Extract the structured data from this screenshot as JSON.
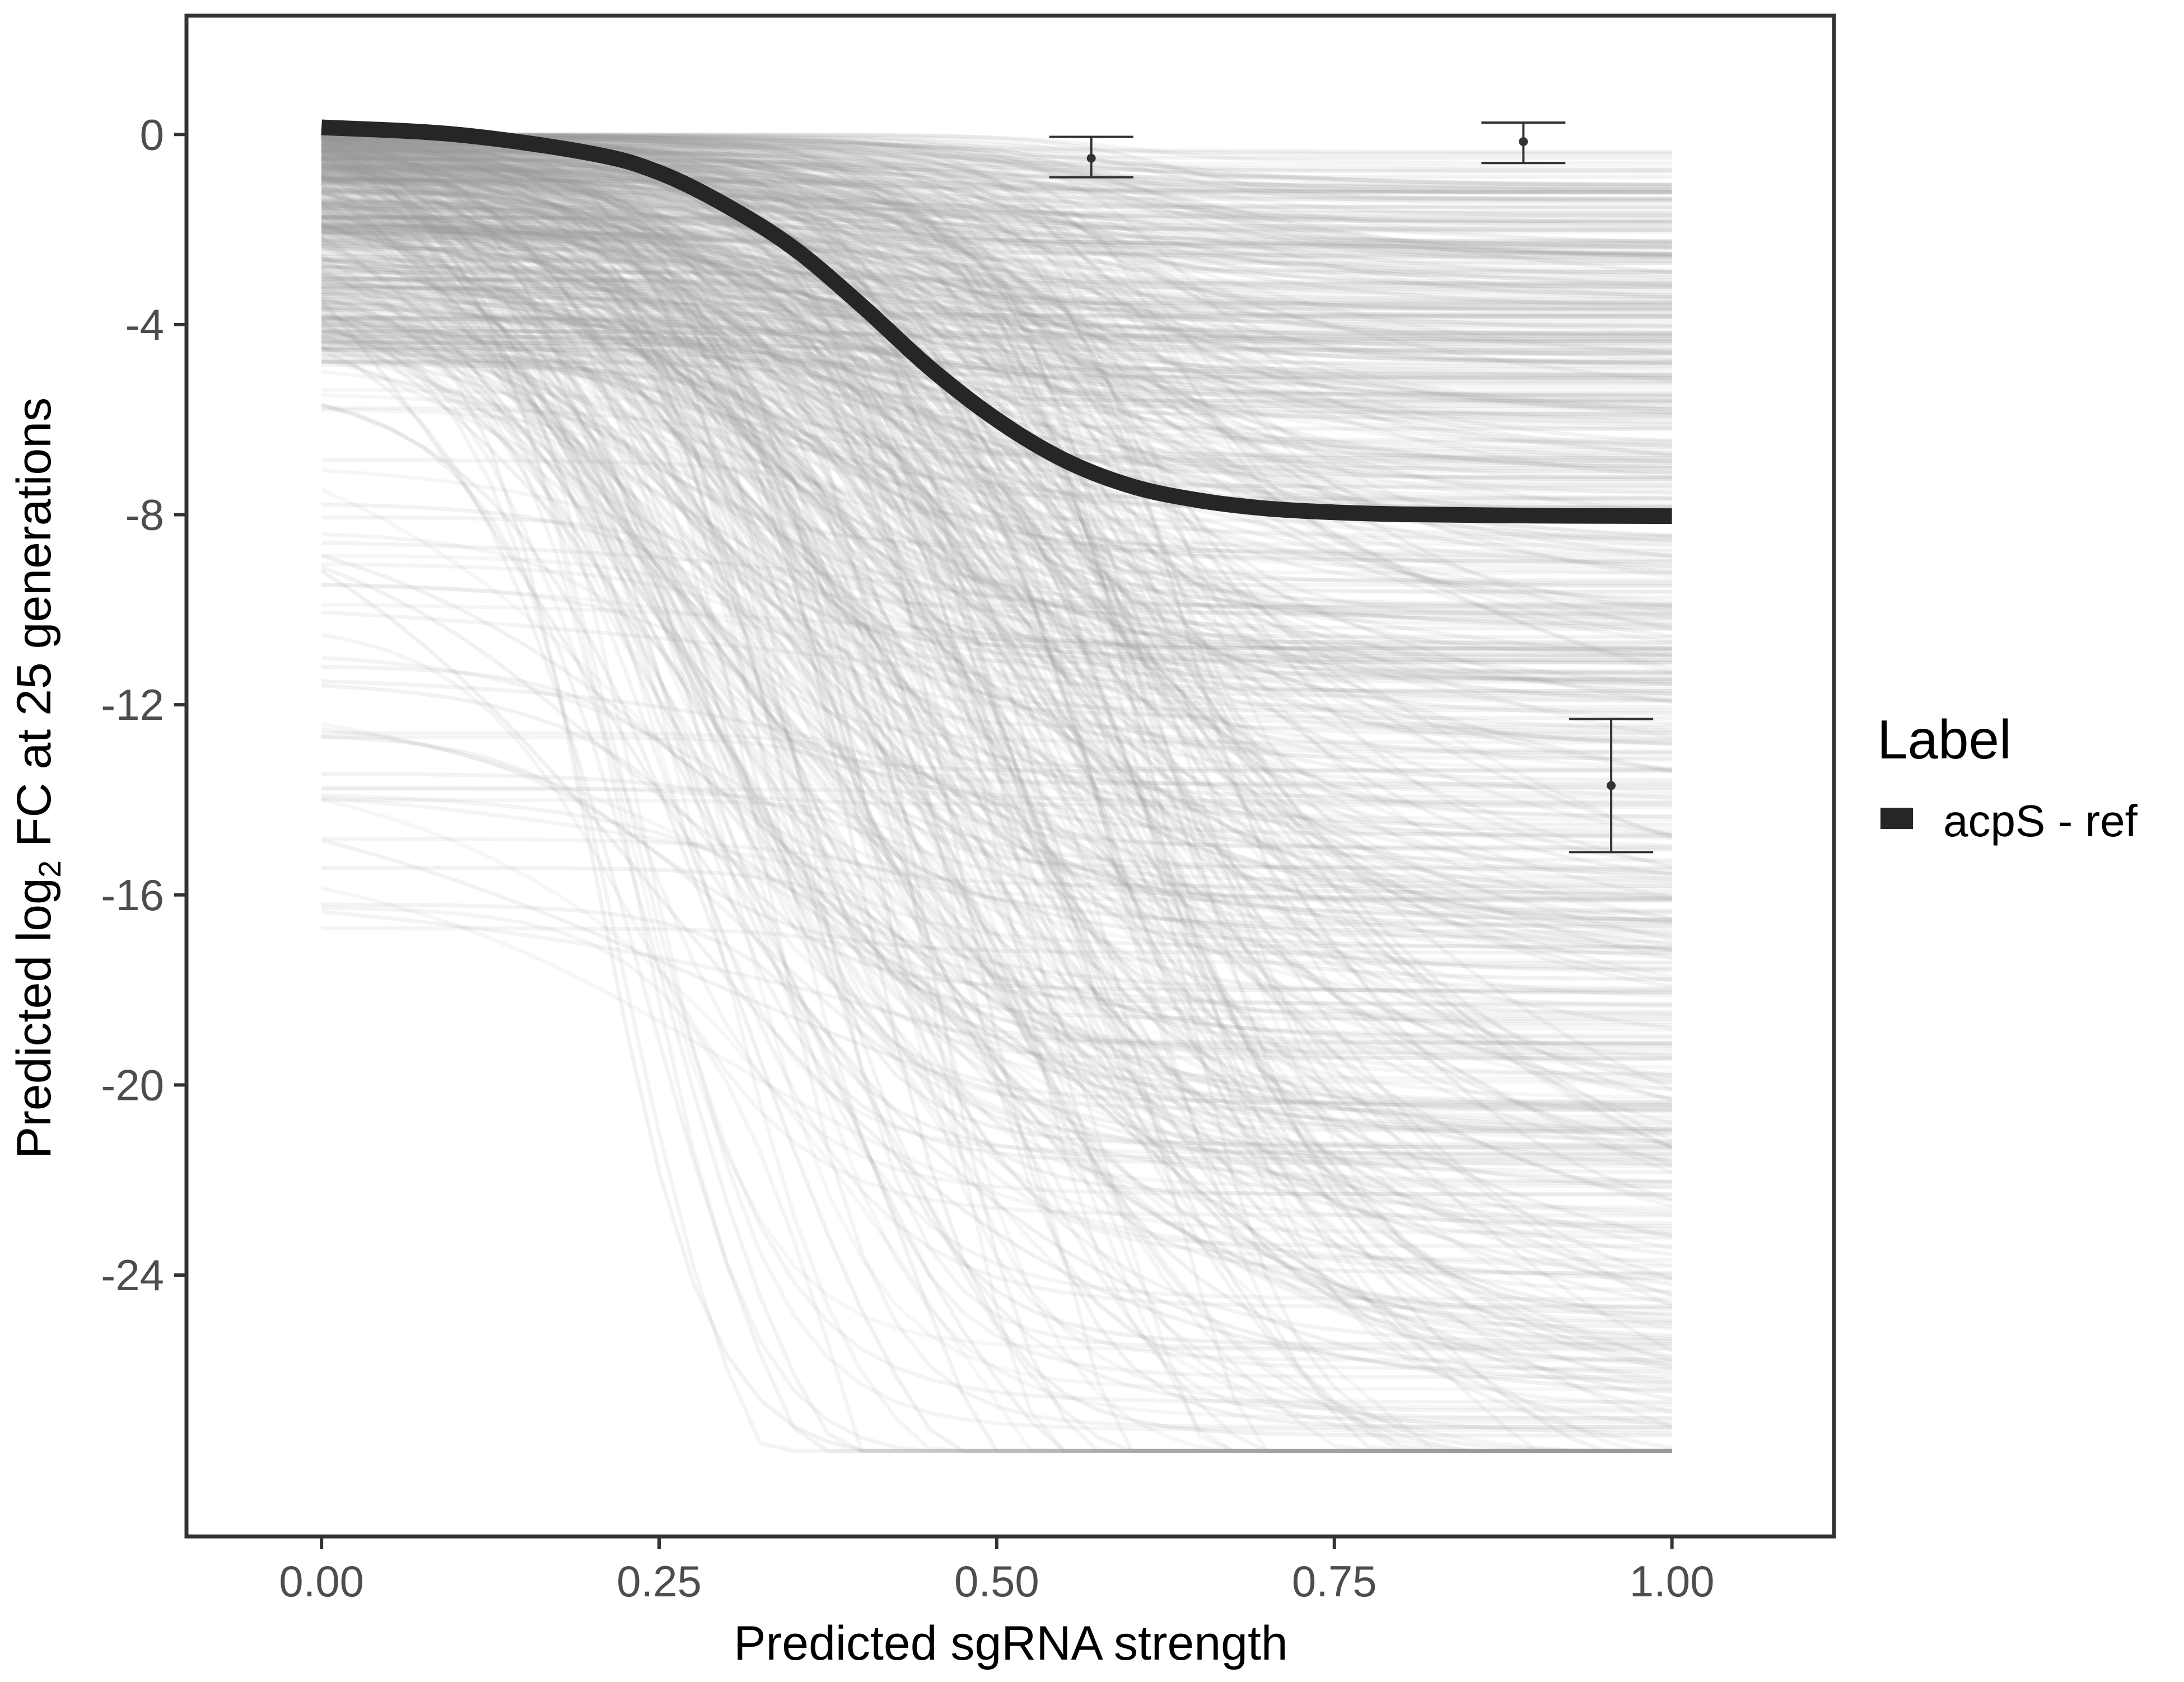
{
  "chart_data": {
    "type": "line",
    "xlabel": "Predicted sgRNA strength",
    "ylabel_prefix": "Predicted  log",
    "ylabel_subscript": "2",
    "ylabel_suffix": " FC at 25 generations",
    "xlim": [
      -0.1,
      1.12
    ],
    "ylim": [
      -29.5,
      2.5
    ],
    "x_ticks": [
      0.0,
      0.25,
      0.5,
      0.75,
      1.0
    ],
    "x_tick_labels": [
      "0.00",
      "0.25",
      "0.50",
      "0.75",
      "1.00"
    ],
    "y_ticks": [
      0,
      -4,
      -8,
      -12,
      -16,
      -20,
      -24
    ],
    "y_tick_labels": [
      "0",
      "-4",
      "-8",
      "-12",
      "-16",
      "-20",
      "-24"
    ],
    "grid": false,
    "legend": {
      "title": "Label",
      "position": "right",
      "entries": [
        {
          "label": "acpS - ref",
          "color": "#262626"
        }
      ]
    },
    "colors": {
      "highlight": "#262626",
      "posterior": "#9a9a9a",
      "errorbar": "#333333",
      "frame": "#333333"
    },
    "highlight_curve": {
      "name": "acpS - ref",
      "x": [
        0.0,
        0.1,
        0.2,
        0.25,
        0.3,
        0.35,
        0.4,
        0.45,
        0.5,
        0.55,
        0.6,
        0.65,
        0.7,
        0.75,
        0.8,
        0.9,
        1.0
      ],
      "y": [
        0.15,
        0.0,
        -0.4,
        -0.8,
        -1.5,
        -2.4,
        -3.6,
        -4.9,
        -6.0,
        -6.85,
        -7.4,
        -7.7,
        -7.87,
        -7.95,
        -7.99,
        -8.02,
        -8.03
      ]
    },
    "error_bars": [
      {
        "x": 0.57,
        "y": -0.5,
        "ymin": -0.9,
        "ymax": -0.05
      },
      {
        "x": 0.89,
        "y": -0.15,
        "ymin": -0.6,
        "ymax": 0.25
      },
      {
        "x": 0.955,
        "y": -13.7,
        "ymin": -15.1,
        "ymax": -12.3
      }
    ],
    "posterior_curves": {
      "count": 700,
      "x_range": [
        0.0,
        1.0
      ],
      "y_at_x0_range": [
        -16.8,
        0.2
      ],
      "y_at_x1_range": [
        -27.3,
        0.2
      ],
      "min_y": -27.7
    }
  }
}
